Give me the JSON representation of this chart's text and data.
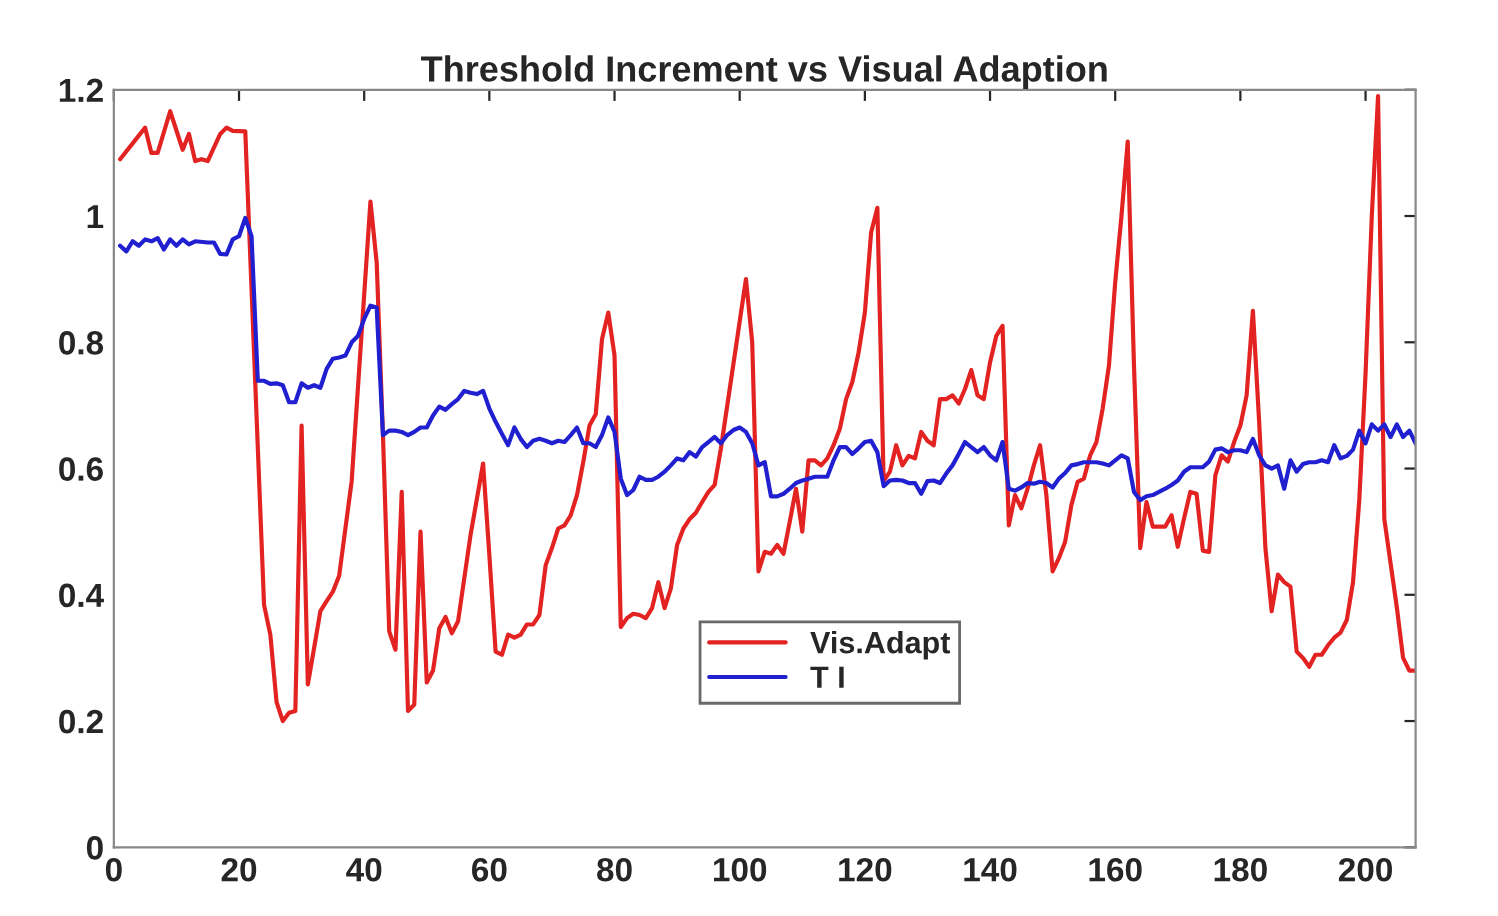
{
  "chart_data": {
    "type": "line",
    "title": "Threshold Increment vs Visual Adaption",
    "series": [
      {
        "name": "Vis.Adapt",
        "color": "#e32222",
        "x": [
          1,
          5,
          6,
          7,
          9,
          11,
          12,
          13,
          14,
          15,
          17,
          18,
          19,
          21,
          24,
          25,
          26,
          27,
          28,
          29,
          30,
          31,
          32,
          33,
          34,
          35,
          36,
          38,
          41,
          42,
          43,
          44,
          45,
          46,
          47,
          48,
          49,
          50,
          51,
          52,
          53,
          54,
          55,
          57,
          59,
          60,
          61,
          62,
          63,
          64,
          65,
          66,
          67,
          68,
          69,
          70,
          71,
          72,
          73,
          74,
          75,
          76,
          77,
          78,
          79,
          80,
          81,
          82,
          83,
          84,
          85,
          86,
          87,
          88,
          89,
          90,
          91,
          92,
          93,
          94,
          95,
          96,
          97,
          101,
          102,
          103,
          104,
          105,
          106,
          107,
          108,
          109,
          110,
          111,
          112,
          113,
          114,
          115,
          116,
          117,
          118,
          119,
          120,
          121,
          122,
          123,
          124,
          125,
          126,
          127,
          128,
          129,
          130,
          131,
          132,
          133,
          134,
          135,
          136,
          137,
          138,
          139,
          140,
          141,
          142,
          143,
          144,
          145,
          146,
          147,
          148,
          149,
          150,
          151,
          152,
          153,
          154,
          155,
          156,
          157,
          158,
          159,
          160,
          161,
          162,
          163,
          164,
          165,
          166,
          167,
          168,
          169,
          170,
          171,
          172,
          173,
          174,
          175,
          176,
          177,
          178,
          179,
          180,
          181,
          182,
          183,
          184,
          185,
          186,
          187,
          188,
          189,
          190,
          191,
          192,
          193,
          194,
          195,
          196,
          197,
          198,
          199,
          200,
          201,
          202,
          203,
          204,
          205,
          206,
          207,
          208
        ],
        "values": [
          1.09,
          1.14,
          1.1,
          1.1,
          1.166,
          1.105,
          1.13,
          1.087,
          1.09,
          1.087,
          1.13,
          1.14,
          1.135,
          1.134,
          0.384,
          0.337,
          0.23,
          0.2,
          0.213,
          0.216,
          0.668,
          0.258,
          0.316,
          0.374,
          0.39,
          0.405,
          0.43,
          0.58,
          1.023,
          0.926,
          0.653,
          0.342,
          0.313,
          0.563,
          0.216,
          0.226,
          0.5,
          0.261,
          0.28,
          0.347,
          0.365,
          0.339,
          0.358,
          0.495,
          0.608,
          0.463,
          0.31,
          0.305,
          0.337,
          0.332,
          0.337,
          0.353,
          0.353,
          0.368,
          0.447,
          0.474,
          0.505,
          0.51,
          0.526,
          0.558,
          0.61,
          0.668,
          0.686,
          0.805,
          0.847,
          0.779,
          0.349,
          0.363,
          0.37,
          0.368,
          0.363,
          0.379,
          0.42,
          0.379,
          0.41,
          0.479,
          0.505,
          0.52,
          0.53,
          0.547,
          0.563,
          0.574,
          0.632,
          0.9,
          0.8,
          0.437,
          0.468,
          0.465,
          0.479,
          0.465,
          0.516,
          0.568,
          0.5,
          0.613,
          0.613,
          0.605,
          0.616,
          0.637,
          0.663,
          0.71,
          0.737,
          0.784,
          0.847,
          0.974,
          1.013,
          0.58,
          0.595,
          0.637,
          0.605,
          0.62,
          0.616,
          0.658,
          0.644,
          0.637,
          0.71,
          0.71,
          0.716,
          0.703,
          0.726,
          0.756,
          0.716,
          0.71,
          0.768,
          0.81,
          0.826,
          0.51,
          0.558,
          0.537,
          0.568,
          0.605,
          0.637,
          0.558,
          0.437,
          0.458,
          0.484,
          0.542,
          0.579,
          0.584,
          0.621,
          0.642,
          0.695,
          0.763,
          0.895,
          1.0,
          1.118,
          0.763,
          0.474,
          0.547,
          0.508,
          0.508,
          0.508,
          0.526,
          0.476,
          0.521,
          0.563,
          0.56,
          0.47,
          0.468,
          0.589,
          0.621,
          0.611,
          0.642,
          0.668,
          0.716,
          0.85,
          0.674,
          0.474,
          0.374,
          0.432,
          0.42,
          0.413,
          0.31,
          0.3,
          0.286,
          0.305,
          0.305,
          0.32,
          0.332,
          0.34,
          0.36,
          0.42,
          0.55,
          0.75,
          1.0,
          1.19,
          0.52,
          0.45,
          0.38,
          0.3,
          0.28,
          0.28
        ]
      },
      {
        "name": "T I",
        "color": "#2020d0",
        "x": [
          1,
          2,
          3,
          4,
          5,
          6,
          7,
          8,
          9,
          10,
          11,
          12,
          13,
          15,
          16,
          17,
          18,
          19,
          20,
          21,
          22,
          23,
          24,
          25,
          26,
          27,
          28,
          29,
          30,
          31,
          32,
          33,
          34,
          35,
          36,
          37,
          38,
          39,
          40,
          41,
          42,
          43,
          44,
          45,
          46,
          47,
          48,
          49,
          50,
          51,
          52,
          53,
          54,
          55,
          56,
          57,
          58,
          59,
          60,
          61,
          62,
          63,
          64,
          65,
          66,
          67,
          68,
          69,
          70,
          71,
          72,
          73,
          74,
          75,
          76,
          77,
          78,
          79,
          80,
          81,
          82,
          83,
          84,
          85,
          86,
          87,
          88,
          89,
          90,
          91,
          92,
          93,
          94,
          95,
          96,
          97,
          98,
          99,
          100,
          101,
          102,
          103,
          104,
          105,
          106,
          107,
          108,
          109,
          110,
          111,
          112,
          113,
          114,
          115,
          116,
          117,
          118,
          119,
          120,
          121,
          122,
          123,
          124,
          125,
          126,
          127,
          128,
          129,
          130,
          131,
          132,
          133,
          134,
          135,
          136,
          137,
          138,
          139,
          140,
          141,
          142,
          143,
          144,
          145,
          146,
          147,
          148,
          149,
          150,
          151,
          152,
          153,
          154,
          155,
          156,
          157,
          158,
          159,
          160,
          161,
          162,
          163,
          164,
          165,
          166,
          167,
          168,
          169,
          170,
          171,
          172,
          173,
          174,
          175,
          176,
          177,
          178,
          179,
          180,
          181,
          182,
          183,
          184,
          185,
          186,
          187,
          188,
          189,
          190,
          191,
          192,
          193,
          194,
          195,
          196,
          197,
          198,
          199,
          200,
          201,
          202,
          203,
          204,
          205,
          206,
          207,
          208
        ],
        "values": [
          0.953,
          0.944,
          0.96,
          0.953,
          0.963,
          0.96,
          0.965,
          0.947,
          0.963,
          0.953,
          0.963,
          0.955,
          0.96,
          0.958,
          0.958,
          0.94,
          0.939,
          0.963,
          0.968,
          0.997,
          0.968,
          0.739,
          0.739,
          0.734,
          0.735,
          0.732,
          0.705,
          0.705,
          0.735,
          0.728,
          0.732,
          0.728,
          0.758,
          0.774,
          0.776,
          0.779,
          0.8,
          0.81,
          0.837,
          0.858,
          0.855,
          0.653,
          0.66,
          0.66,
          0.658,
          0.653,
          0.658,
          0.665,
          0.665,
          0.684,
          0.698,
          0.693,
          0.702,
          0.71,
          0.723,
          0.72,
          0.718,
          0.723,
          0.695,
          0.674,
          0.655,
          0.637,
          0.665,
          0.647,
          0.634,
          0.644,
          0.647,
          0.644,
          0.64,
          0.644,
          0.642,
          0.653,
          0.665,
          0.64,
          0.64,
          0.634,
          0.653,
          0.681,
          0.658,
          0.584,
          0.558,
          0.566,
          0.587,
          0.582,
          0.582,
          0.587,
          0.595,
          0.605,
          0.616,
          0.613,
          0.626,
          0.619,
          0.634,
          0.642,
          0.65,
          0.64,
          0.653,
          0.661,
          0.665,
          0.658,
          0.64,
          0.605,
          0.61,
          0.556,
          0.556,
          0.56,
          0.568,
          0.577,
          0.581,
          0.584,
          0.587,
          0.587,
          0.587,
          0.613,
          0.634,
          0.634,
          0.623,
          0.632,
          0.642,
          0.644,
          0.626,
          0.572,
          0.581,
          0.582,
          0.581,
          0.577,
          0.577,
          0.56,
          0.58,
          0.581,
          0.577,
          0.592,
          0.605,
          0.623,
          0.642,
          0.634,
          0.626,
          0.634,
          0.621,
          0.613,
          0.642,
          0.568,
          0.565,
          0.57,
          0.577,
          0.576,
          0.579,
          0.577,
          0.57,
          0.584,
          0.593,
          0.605,
          0.607,
          0.61,
          0.61,
          0.61,
          0.608,
          0.605,
          0.613,
          0.621,
          0.616,
          0.563,
          0.55,
          0.556,
          0.558,
          0.563,
          0.568,
          0.574,
          0.581,
          0.595,
          0.602,
          0.602,
          0.602,
          0.611,
          0.63,
          0.632,
          0.626,
          0.629,
          0.629,
          0.626,
          0.647,
          0.621,
          0.605,
          0.6,
          0.605,
          0.568,
          0.613,
          0.595,
          0.607,
          0.61,
          0.61,
          0.613,
          0.61,
          0.637,
          0.616,
          0.62,
          0.63,
          0.66,
          0.64,
          0.67,
          0.66,
          0.67,
          0.65,
          0.67,
          0.65,
          0.66,
          0.64
        ]
      }
    ],
    "xlim": [
      0,
      208
    ],
    "xticks": [
      0,
      20,
      40,
      60,
      80,
      100,
      120,
      140,
      160,
      180,
      200
    ],
    "ylim": [
      0,
      1.2
    ],
    "yticks": [
      0,
      0.2,
      0.4,
      0.6,
      0.8,
      1,
      1.2
    ],
    "legend": "bottom",
    "grid": false
  }
}
